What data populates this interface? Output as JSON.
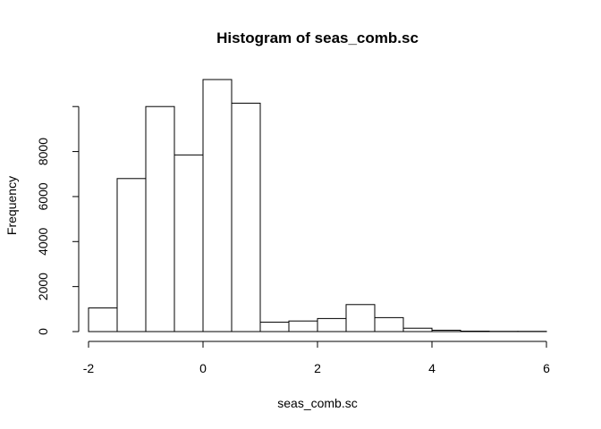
{
  "chart_data": {
    "type": "bar",
    "title": "Histogram of seas_comb.sc",
    "xlabel": "seas_comb.sc",
    "ylabel": "Frequency",
    "bin_edges": [
      -2.0,
      -1.5,
      -1.0,
      -0.5,
      0.0,
      0.5,
      1.0,
      1.5,
      2.0,
      2.5,
      3.0,
      3.5,
      4.0,
      4.5,
      5.0,
      5.5,
      6.0
    ],
    "values": [
      1050,
      6800,
      10000,
      7850,
      11200,
      10150,
      420,
      470,
      580,
      1200,
      620,
      150,
      60,
      20,
      10,
      10
    ],
    "xlim": [
      -2,
      6
    ],
    "ylim": [
      0,
      11200
    ],
    "x_ticks": [
      -2,
      0,
      2,
      4,
      6
    ],
    "x_tick_labels": [
      "-2",
      "0",
      "2",
      "4",
      "6"
    ],
    "y_ticks": [
      0,
      2000,
      4000,
      6000,
      8000,
      10000
    ],
    "y_tick_labels": [
      "0",
      "2000",
      "4000",
      "6000",
      "8000",
      ""
    ],
    "grid": false,
    "legend": "none",
    "colors": {
      "bar_fill": "#ffffff",
      "bar_stroke": "#000000",
      "axis": "#000000"
    }
  }
}
